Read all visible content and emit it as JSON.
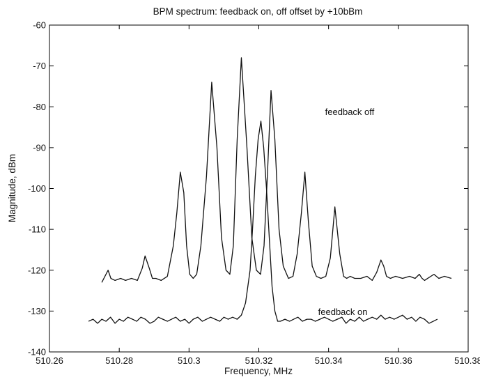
{
  "chart_data": {
    "type": "line",
    "title": "BPM spectrum: feedback on, off offset by +10bBm",
    "xlabel": "Frequency, MHz",
    "ylabel": "Magnitude, dBm",
    "xlim": [
      510.26,
      510.38
    ],
    "ylim": [
      -140,
      -60
    ],
    "x_ticks": [
      "510.26",
      "510.28",
      "510.3",
      "510.32",
      "510.34",
      "510.36",
      "510.38"
    ],
    "y_ticks": [
      "-140",
      "-130",
      "-120",
      "-110",
      "-100",
      "-90",
      "-80",
      "-70",
      "-60"
    ],
    "grid": false,
    "annotations": [
      {
        "text": "feedback off",
        "x": 510.339,
        "y": -82
      },
      {
        "text": "feedback on",
        "x": 510.337,
        "y": -131
      }
    ],
    "series": [
      {
        "name": "feedback off",
        "x": [
          510.275,
          510.2768,
          510.2776,
          510.2788,
          510.2804,
          510.2818,
          510.2835,
          510.2852,
          510.2866,
          510.2874,
          510.2886,
          510.2895,
          510.2905,
          510.292,
          510.2938,
          510.2955,
          510.2965,
          510.2975,
          510.2985,
          510.2993,
          510.3002,
          510.3012,
          510.3022,
          510.3034,
          510.305,
          510.3065,
          510.308,
          510.3093,
          510.3106,
          510.3117,
          510.3127,
          510.3138,
          510.315,
          510.3166,
          510.318,
          510.3193,
          510.3205,
          510.3215,
          510.3225,
          510.3235,
          510.3246,
          510.3258,
          510.327,
          510.3285,
          510.3298,
          510.331,
          510.3322,
          510.3332,
          510.3342,
          510.3353,
          510.3365,
          510.3378,
          510.3392,
          510.3405,
          510.3418,
          510.3432,
          510.3443,
          510.3452,
          510.3462,
          510.3475,
          510.3492,
          510.351,
          510.3525,
          510.3538,
          510.355,
          510.3558,
          510.3566,
          510.3577,
          510.3592,
          510.3612,
          510.3632,
          510.3648,
          510.366,
          510.3668,
          510.3675,
          510.3684,
          510.3702,
          510.3716,
          510.3732,
          510.3752
        ],
        "values": [
          -123,
          -120,
          -122,
          -122.5,
          -122,
          -122.5,
          -122,
          -122.5,
          -119.5,
          -116.5,
          -119.5,
          -122,
          -122,
          -122.5,
          -121.5,
          -114,
          -106,
          -96,
          -101,
          -114,
          -121,
          -122,
          -121,
          -114,
          -97,
          -74,
          -90,
          -112,
          -120,
          -121,
          -114,
          -88,
          -68,
          -90,
          -112,
          -120,
          -121,
          -114,
          -96,
          -76,
          -88,
          -110,
          -119,
          -122,
          -121.5,
          -116,
          -106,
          -96,
          -108,
          -119,
          -121.5,
          -122,
          -121.5,
          -117,
          -104.5,
          -116,
          -121.5,
          -122,
          -121.5,
          -122,
          -122,
          -121.5,
          -122.5,
          -120.5,
          -117.5,
          -119,
          -121.5,
          -122,
          -121.5,
          -122,
          -121.5,
          -122,
          -121,
          -122,
          -122.5,
          -122,
          -121,
          -122,
          -121.5,
          -122
        ]
      },
      {
        "name": "feedback on",
        "x": [
          510.2712,
          510.2725,
          510.2738,
          510.275,
          510.2762,
          510.2775,
          510.2788,
          510.28,
          510.2812,
          510.2825,
          510.2838,
          510.285,
          510.2862,
          510.2875,
          510.2888,
          510.29,
          510.2912,
          510.2925,
          510.2938,
          510.295,
          510.2962,
          510.2975,
          510.2988,
          510.3,
          510.3012,
          510.3025,
          510.3038,
          510.305,
          510.3062,
          510.3075,
          510.3088,
          510.31,
          510.3112,
          510.3125,
          510.3138,
          510.315,
          510.3162,
          510.3175,
          510.3182,
          510.319,
          510.3198,
          510.3206,
          510.3214,
          510.3222,
          510.323,
          510.3238,
          510.3246,
          510.3254,
          510.3262,
          510.3275,
          510.3288,
          510.33,
          510.3312,
          510.3325,
          510.3338,
          510.335,
          510.3362,
          510.3375,
          510.3388,
          510.34,
          510.3412,
          510.3425,
          510.3438,
          510.345,
          510.3462,
          510.3475,
          510.3488,
          510.35,
          510.3512,
          510.3525,
          510.3538,
          510.355,
          510.3562,
          510.3575,
          510.3588,
          510.36,
          510.3612,
          510.3625,
          510.3638,
          510.365,
          510.3662,
          510.3675,
          510.3688,
          510.37,
          510.3712
        ],
        "values": [
          -132.5,
          -132,
          -133,
          -132,
          -132.5,
          -131.5,
          -133,
          -132,
          -132.5,
          -131.5,
          -132,
          -132.5,
          -131.5,
          -132,
          -133,
          -132.5,
          -131.5,
          -132,
          -132.5,
          -132,
          -131.5,
          -132.5,
          -132,
          -133,
          -132,
          -131.5,
          -132.5,
          -132,
          -131.5,
          -132,
          -132.5,
          -131.5,
          -132,
          -131.5,
          -132,
          -131,
          -128,
          -120,
          -110,
          -97,
          -88,
          -83.5,
          -90,
          -100,
          -112,
          -124,
          -130,
          -132.5,
          -132.5,
          -132,
          -132.5,
          -132,
          -131.5,
          -132.5,
          -132,
          -132,
          -132.5,
          -132,
          -131.5,
          -132,
          -132.5,
          -132,
          -131.5,
          -133,
          -132,
          -132.5,
          -131.5,
          -132.5,
          -132,
          -131.5,
          -132,
          -131,
          -132,
          -131.5,
          -132,
          -131.5,
          -131,
          -132,
          -131.5,
          -132.5,
          -131.5,
          -132,
          -133,
          -132.5,
          -132
        ]
      }
    ]
  }
}
